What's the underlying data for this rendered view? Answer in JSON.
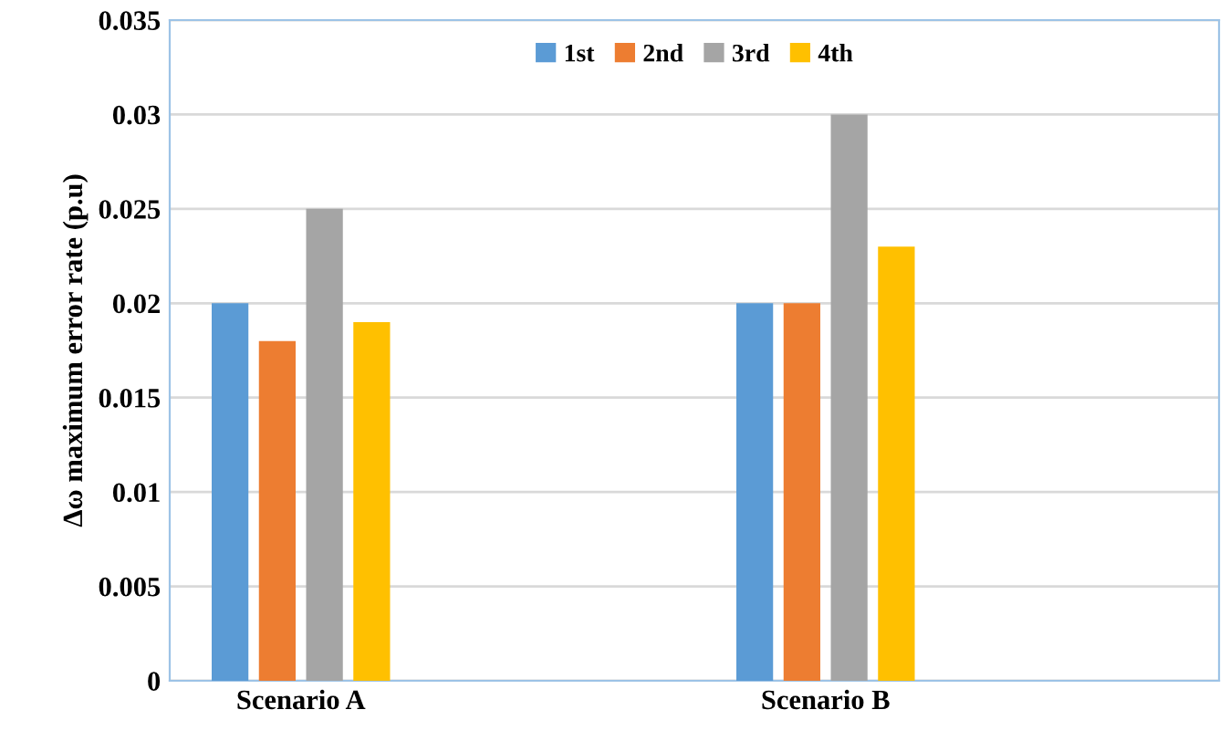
{
  "chart_data": {
    "type": "bar",
    "ylabel": "Δω maximum error rate (p.u)",
    "categories": [
      "Scenario A",
      "Scenario B"
    ],
    "series": [
      {
        "name": "1st",
        "color": "#5b9bd5",
        "values": [
          0.02,
          0.02
        ]
      },
      {
        "name": "2nd",
        "color": "#ed7d31",
        "values": [
          0.018,
          0.02
        ]
      },
      {
        "name": "3rd",
        "color": "#a5a5a5",
        "values": [
          0.025,
          0.03
        ]
      },
      {
        "name": "4th",
        "color": "#ffc000",
        "values": [
          0.019,
          0.023
        ]
      }
    ],
    "ylim": [
      0,
      0.035
    ],
    "yticks": [
      0,
      0.005,
      0.01,
      0.015,
      0.02,
      0.025,
      0.03,
      0.035
    ],
    "grid": "y",
    "legend": "top"
  }
}
